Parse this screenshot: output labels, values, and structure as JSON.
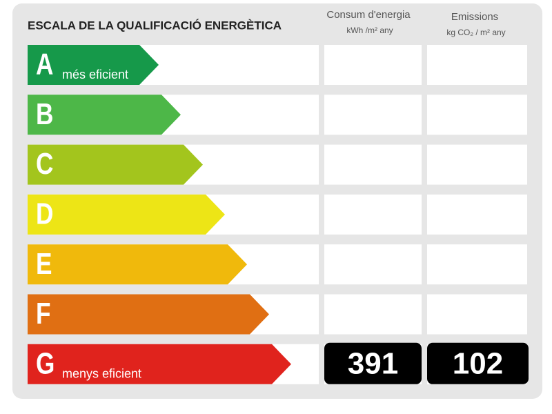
{
  "header": {
    "title": "ESCALA DE LA QUALIFICACIÓ ENERGÈTICA",
    "columns": [
      {
        "title": "Consum d'energia",
        "unit": "kWh /m²  any"
      },
      {
        "title": "Emissions",
        "unit": "kg CO₂  / m²  any"
      }
    ]
  },
  "rows": [
    {
      "letter": "A",
      "note": "més eficient",
      "color": "#16994a"
    },
    {
      "letter": "B",
      "color": "#4db748"
    },
    {
      "letter": "C",
      "color": "#a3c51d"
    },
    {
      "letter": "D",
      "color": "#ede516"
    },
    {
      "letter": "E",
      "color": "#f0b90c"
    },
    {
      "letter": "F",
      "color": "#e06f13"
    },
    {
      "letter": "G",
      "note": "menys eficient",
      "color": "#e0231d",
      "consumption": 391,
      "emissions": 102
    }
  ]
}
